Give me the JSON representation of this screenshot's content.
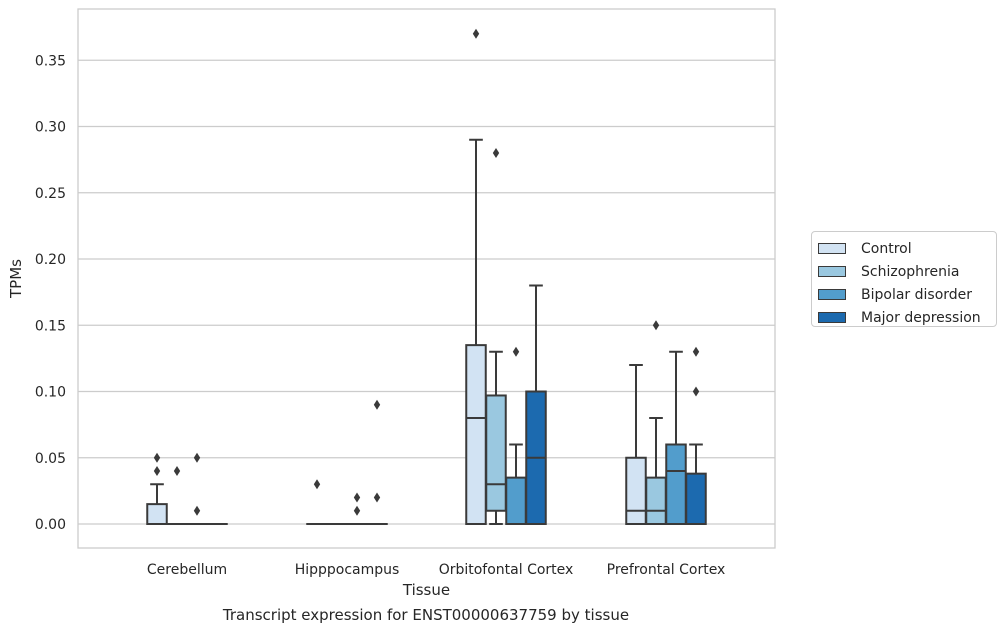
{
  "caption": "Transcript expression for ENST00000637759 by tissue",
  "chart_data": {
    "type": "boxplot",
    "title": "",
    "xlabel": "Tissue",
    "ylabel": "TPMs",
    "ylim": [
      -0.018,
      0.388
    ],
    "yticks": [
      "0.00",
      "0.05",
      "0.10",
      "0.15",
      "0.20",
      "0.25",
      "0.30",
      "0.35"
    ],
    "grid": "horizontal",
    "legend_position": "right",
    "categories": [
      "Cerebellum",
      "Hipppocampus",
      "Orbitofontal Cortex",
      "Prefrontal Cortex"
    ],
    "series": [
      {
        "name": "Control",
        "color": "#d2e3f3",
        "boxes": [
          {
            "q1": 0.0,
            "median": 0.0,
            "q3": 0.015,
            "whisker_low": 0.0,
            "whisker_high": 0.03,
            "outliers": [
              0.04,
              0.05
            ]
          },
          {
            "q1": 0.0,
            "median": 0.0,
            "q3": 0.0,
            "whisker_low": 0.0,
            "whisker_high": 0.0,
            "outliers": [
              0.03
            ]
          },
          {
            "q1": 0.0,
            "median": 0.08,
            "q3": 0.135,
            "whisker_low": 0.0,
            "whisker_high": 0.29,
            "outliers": [
              0.37
            ]
          },
          {
            "q1": 0.0,
            "median": 0.01,
            "q3": 0.05,
            "whisker_low": 0.0,
            "whisker_high": 0.12,
            "outliers": []
          }
        ]
      },
      {
        "name": "Schizophrenia",
        "color": "#9ac8e0",
        "boxes": [
          {
            "q1": 0.0,
            "median": 0.0,
            "q3": 0.0,
            "whisker_low": 0.0,
            "whisker_high": 0.0,
            "outliers": [
              0.04
            ]
          },
          {
            "q1": 0.0,
            "median": 0.0,
            "q3": 0.0,
            "whisker_low": 0.0,
            "whisker_high": 0.0,
            "outliers": []
          },
          {
            "q1": 0.01,
            "median": 0.03,
            "q3": 0.097,
            "whisker_low": 0.0,
            "whisker_high": 0.13,
            "outliers": [
              0.28
            ]
          },
          {
            "q1": 0.0,
            "median": 0.01,
            "q3": 0.035,
            "whisker_low": 0.0,
            "whisker_high": 0.08,
            "outliers": [
              0.15
            ]
          }
        ]
      },
      {
        "name": "Bipolar disorder",
        "color": "#529dcc",
        "boxes": [
          {
            "q1": 0.0,
            "median": 0.0,
            "q3": 0.0,
            "whisker_low": 0.0,
            "whisker_high": 0.0,
            "outliers": [
              0.01,
              0.05
            ]
          },
          {
            "q1": 0.0,
            "median": 0.0,
            "q3": 0.0,
            "whisker_low": 0.0,
            "whisker_high": 0.0,
            "outliers": [
              0.01,
              0.02
            ]
          },
          {
            "q1": 0.0,
            "median": 0.0,
            "q3": 0.035,
            "whisker_low": 0.0,
            "whisker_high": 0.06,
            "outliers": [
              0.13
            ]
          },
          {
            "q1": 0.0,
            "median": 0.04,
            "q3": 0.06,
            "whisker_low": 0.0,
            "whisker_high": 0.13,
            "outliers": []
          }
        ]
      },
      {
        "name": "Major depression",
        "color": "#1c6aaf",
        "boxes": [
          {
            "q1": 0.0,
            "median": 0.0,
            "q3": 0.0,
            "whisker_low": 0.0,
            "whisker_high": 0.0,
            "outliers": []
          },
          {
            "q1": 0.0,
            "median": 0.0,
            "q3": 0.0,
            "whisker_low": 0.0,
            "whisker_high": 0.0,
            "outliers": [
              0.02,
              0.09
            ]
          },
          {
            "q1": 0.0,
            "median": 0.05,
            "q3": 0.1,
            "whisker_low": 0.0,
            "whisker_high": 0.18,
            "outliers": []
          },
          {
            "q1": 0.0,
            "median": 0.0,
            "q3": 0.038,
            "whisker_low": 0.0,
            "whisker_high": 0.06,
            "outliers": [
              0.1,
              0.13
            ]
          }
        ]
      }
    ]
  }
}
